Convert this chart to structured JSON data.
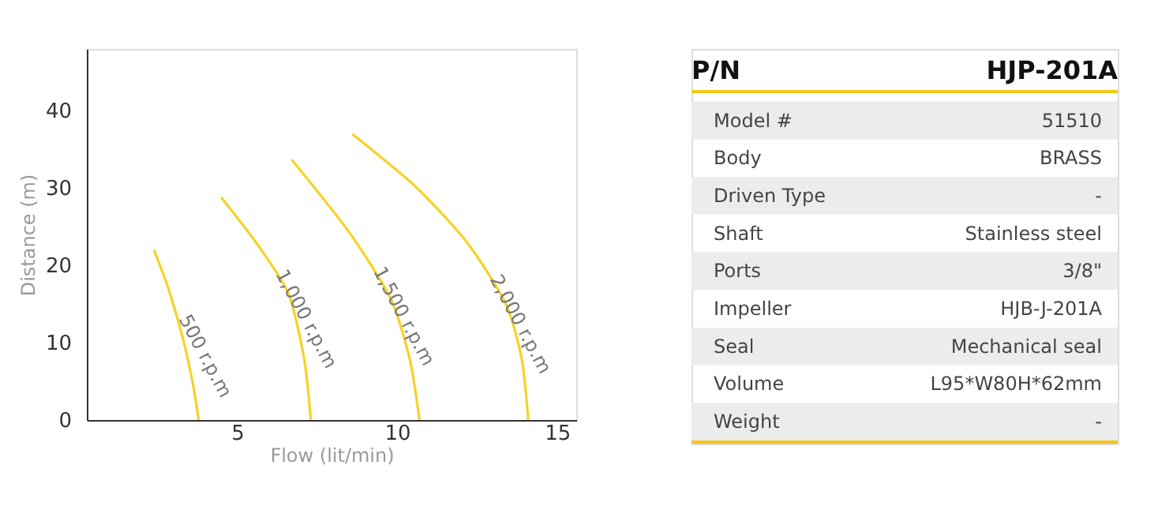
{
  "chart_data": [
    {
      "type": "line",
      "xlabel": "Flow (lit/min)",
      "ylabel": "Distance (m)",
      "xlim": [
        0.3,
        15.6
      ],
      "ylim": [
        0,
        48
      ],
      "xticks": [
        5,
        10,
        15
      ],
      "yticks": [
        0,
        10,
        20,
        30,
        40
      ],
      "grid": false,
      "legend": false,
      "marker": "none",
      "line_style": "solid",
      "series": [
        {
          "name": "500 r.p.m",
          "color": "#f5d327",
          "x": [
            2.4,
            2.85,
            3.3,
            3.6,
            3.8
          ],
          "values": [
            22,
            17,
            10.6,
            5,
            0
          ]
        },
        {
          "name": "1,000 r.p.m",
          "color": "#f5d327",
          "x": [
            4.5,
            5.6,
            6.6,
            7.1,
            7.3
          ],
          "values": [
            28.8,
            22.9,
            16.4,
            7.8,
            0
          ]
        },
        {
          "name": "1,500 r.p.m",
          "color": "#f5d327",
          "x": [
            6.7,
            8.5,
            9.8,
            10.4,
            10.7
          ],
          "values": [
            33.7,
            24.3,
            15.7,
            7.8,
            0
          ]
        },
        {
          "name": "2,000 r.p.m",
          "color": "#f5d327",
          "x": [
            8.6,
            10.6,
            12.2,
            13.4,
            13.9,
            14.1
          ],
          "values": [
            37,
            30.1,
            22.9,
            15,
            7.8,
            0
          ]
        }
      ]
    },
    {
      "type": "other",
      "title": "P/N",
      "subtitle": "HJP-201A",
      "categories": [
        "Model #",
        "Body",
        "Driven Type",
        "Shaft",
        "Ports",
        "Impeller",
        "Seal",
        "Volume",
        "Weight"
      ],
      "value_labels": [
        "51510",
        "BRASS",
        "-",
        "Stainless steel",
        "3/8\"",
        "HJB-J-201A",
        "Mechanical seal",
        "L95*W80H*62mm",
        "-"
      ]
    }
  ]
}
